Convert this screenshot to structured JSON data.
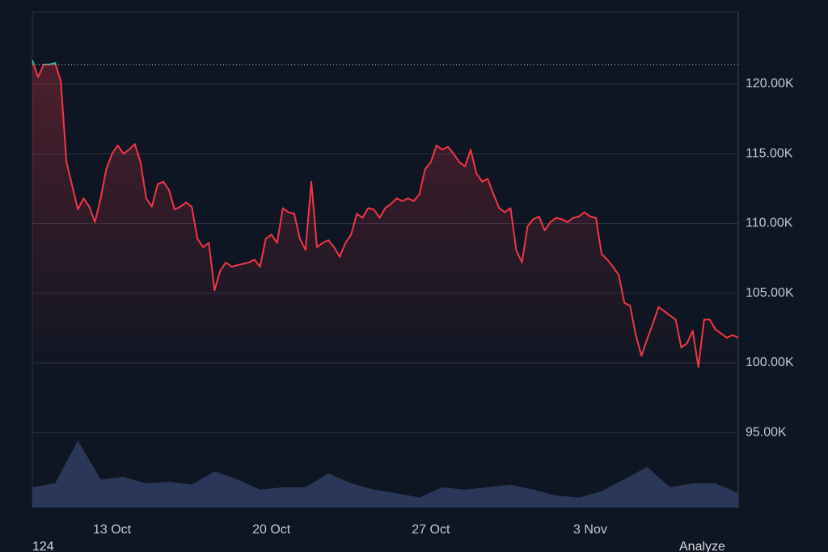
{
  "chart_data": {
    "type": "line",
    "categories": [
      null,
      null,
      null,
      null,
      null,
      null,
      null,
      null,
      null,
      null,
      null,
      null,
      null,
      null,
      "13 Oct",
      null,
      null,
      null,
      null,
      null,
      null,
      null,
      null,
      null,
      null,
      null,
      null,
      null,
      null,
      null,
      null,
      null,
      null,
      null,
      null,
      null,
      null,
      null,
      null,
      null,
      null,
      null,
      "20 Oct",
      null,
      null,
      null,
      null,
      null,
      null,
      null,
      null,
      null,
      null,
      null,
      null,
      null,
      null,
      null,
      null,
      null,
      null,
      null,
      null,
      null,
      null,
      null,
      null,
      null,
      null,
      null,
      "27 Oct",
      null,
      null,
      null,
      null,
      null,
      null,
      null,
      null,
      null,
      null,
      null,
      null,
      null,
      null,
      null,
      null,
      null,
      null,
      null,
      null,
      null,
      null,
      null,
      null,
      null,
      null,
      null,
      "3 Nov",
      null,
      null,
      null,
      null,
      null,
      null,
      null,
      null,
      null,
      null,
      null,
      null,
      null,
      null,
      null,
      null,
      null,
      null,
      null,
      null,
      null,
      null,
      null,
      null,
      null,
      null
    ],
    "series": [
      {
        "color": "#f23645",
        "up_color": "#22c58b",
        "values": [
          121700,
          120500,
          121400,
          121400,
          121500,
          120200,
          114400,
          112700,
          111000,
          111800,
          111200,
          110100,
          111800,
          113900,
          115000,
          115600,
          115000,
          115300,
          115700,
          114400,
          111800,
          111200,
          112800,
          113000,
          112400,
          111000,
          111200,
          111500,
          111200,
          108900,
          108300,
          108600,
          105200,
          106600,
          107200,
          106900,
          107000,
          107100,
          107200,
          107400,
          106900,
          108900,
          109200,
          108600,
          111100,
          110800,
          110700,
          108900,
          108100,
          113000,
          108300,
          108600,
          108800,
          108300,
          107600,
          108600,
          109200,
          110700,
          110400,
          111100,
          111000,
          110400,
          111100,
          111400,
          111800,
          111600,
          111800,
          111600,
          112100,
          113900,
          114400,
          115600,
          115300,
          115500,
          115000,
          114400,
          114100,
          115300,
          113600,
          113000,
          113200,
          112100,
          111100,
          110800,
          111100,
          108100,
          107200,
          109800,
          110300,
          110500,
          109500,
          110100,
          110400,
          110300,
          110100,
          110400,
          110500,
          110800,
          110500,
          110400,
          107800,
          107400,
          106900,
          106300,
          104300,
          104100,
          102000,
          100500,
          101700,
          102800,
          104000,
          103700,
          103400,
          103100,
          101100,
          101400,
          102300,
          99700,
          103100,
          103100,
          102400,
          102100,
          101800,
          102000,
          101800
        ]
      }
    ],
    "baseline": 121400,
    "volume": {
      "color": "#2b3758",
      "values": [
        4.1,
        4.9,
        13.5,
        5.7,
        6.2,
        4.9,
        5.2,
        4.6,
        7.3,
        5.7,
        3.6,
        4.1,
        4.1,
        6.9,
        4.9,
        3.6,
        2.9,
        2.0,
        4.1,
        3.6,
        4.1,
        4.6,
        3.6,
        2.4,
        2.0,
        3.3,
        5.7,
        8.2,
        4.1,
        4.9,
        4.9,
        2.9
      ]
    },
    "y2lim": [
      0,
      100
    ],
    "ylim": [
      89620,
      125160
    ],
    "yticks": [
      {
        "value": 95000,
        "label": "95.00K"
      },
      {
        "value": 100000,
        "label": "100.00K"
      },
      {
        "value": 105000,
        "label": "105.00K"
      },
      {
        "value": 110000,
        "label": "110.00K"
      },
      {
        "value": 115000,
        "label": "115.00K"
      },
      {
        "value": 120000,
        "label": "120.00K"
      }
    ],
    "grid": true
  },
  "footer": {
    "left": "124",
    "right": "Analyze"
  }
}
